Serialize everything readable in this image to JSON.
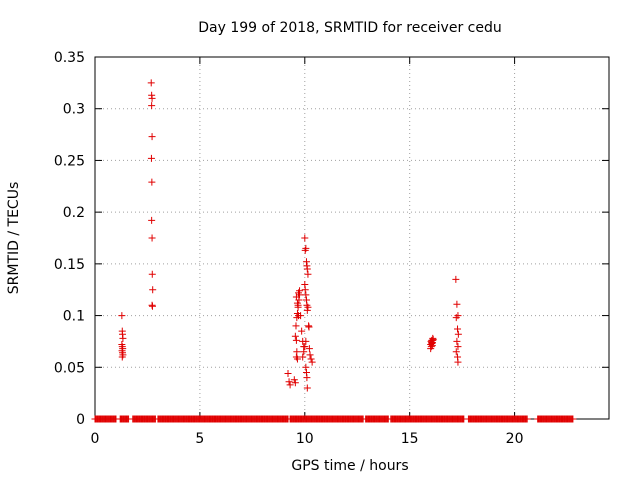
{
  "chart_data": {
    "type": "scatter",
    "title": "Day 199 of 2018, SRMTID for receiver cedu",
    "xlabel": "GPS time / hours",
    "ylabel": "SRMTID / TECUs",
    "xlim": [
      0,
      24.5
    ],
    "ylim": [
      0,
      0.35
    ],
    "grid": true,
    "x_ticks": [
      0,
      5,
      10,
      15,
      20
    ],
    "y_ticks": [
      0,
      0.05,
      0.1,
      0.15,
      0.2,
      0.25,
      0.3,
      0.35
    ],
    "x_tick_labels": [
      "0",
      "5",
      "10",
      "15",
      "20"
    ],
    "y_tick_labels": [
      "0",
      "0.05",
      "0.1",
      "0.15",
      "0.2",
      "0.25",
      "0.3",
      "0.35"
    ],
    "marker": "+",
    "color": "#e00000",
    "zero_segments": [
      [
        0.0,
        1.0
      ],
      [
        1.2,
        1.6
      ],
      [
        1.8,
        2.9
      ],
      [
        3.0,
        9.2
      ],
      [
        9.3,
        12.8
      ],
      [
        12.9,
        14.0
      ],
      [
        14.1,
        17.6
      ],
      [
        17.8,
        20.6
      ],
      [
        21.1,
        22.8
      ]
    ],
    "zero_step": 0.04,
    "series": [
      {
        "name": "SRMTID",
        "x": [
          1.28,
          1.3,
          1.31,
          1.33,
          1.28,
          1.3,
          1.32,
          1.29,
          1.31,
          1.33,
          1.3,
          2.68,
          2.7,
          2.72,
          2.7,
          2.72,
          2.69,
          2.71,
          2.7,
          2.72,
          2.73,
          2.75,
          2.72,
          2.74,
          9.2,
          9.25,
          9.3,
          9.5,
          9.55,
          9.6,
          9.62,
          9.65,
          9.55,
          9.6,
          9.58,
          9.62,
          9.65,
          9.7,
          9.68,
          9.72,
          9.75,
          9.6,
          9.65,
          9.68,
          9.7,
          9.75,
          9.8,
          9.85,
          9.9,
          9.95,
          10.0,
          10.05,
          10.02,
          10.08,
          10.1,
          10.12,
          10.15,
          10.0,
          10.02,
          10.05,
          10.08,
          10.1,
          10.12,
          10.15,
          10.18,
          10.2,
          10.22,
          10.25,
          10.3,
          10.35,
          10.05,
          10.08,
          10.1,
          10.12,
          9.9,
          9.95,
          10.0,
          10.05,
          16.0,
          16.02,
          16.05,
          16.08,
          16.1,
          16.0,
          16.03,
          16.06,
          16.08,
          16.12,
          16.1,
          16.05,
          17.2,
          17.25,
          17.3,
          17.22,
          17.28,
          17.32,
          17.25,
          17.3,
          17.22,
          17.28,
          17.3
        ],
        "y": [
          0.1,
          0.085,
          0.082,
          0.078,
          0.072,
          0.07,
          0.068,
          0.066,
          0.064,
          0.062,
          0.06,
          0.325,
          0.313,
          0.31,
          0.303,
          0.273,
          0.252,
          0.229,
          0.192,
          0.175,
          0.14,
          0.125,
          0.11,
          0.109,
          0.044,
          0.036,
          0.033,
          0.038,
          0.035,
          0.06,
          0.065,
          0.058,
          0.08,
          0.076,
          0.09,
          0.098,
          0.102,
          0.1,
          0.11,
          0.115,
          0.12,
          0.118,
          0.112,
          0.108,
          0.122,
          0.124,
          0.1,
          0.085,
          0.075,
          0.07,
          0.175,
          0.165,
          0.163,
          0.152,
          0.148,
          0.145,
          0.14,
          0.13,
          0.125,
          0.12,
          0.115,
          0.11,
          0.105,
          0.108,
          0.09,
          0.089,
          0.068,
          0.062,
          0.058,
          0.055,
          0.05,
          0.045,
          0.04,
          0.03,
          0.06,
          0.065,
          0.07,
          0.075,
          0.072,
          0.075,
          0.076,
          0.074,
          0.078,
          0.068,
          0.07,
          0.073,
          0.071,
          0.077,
          0.076,
          0.074,
          0.135,
          0.111,
          0.1,
          0.098,
          0.087,
          0.082,
          0.075,
          0.07,
          0.065,
          0.06,
          0.055
        ]
      }
    ]
  }
}
